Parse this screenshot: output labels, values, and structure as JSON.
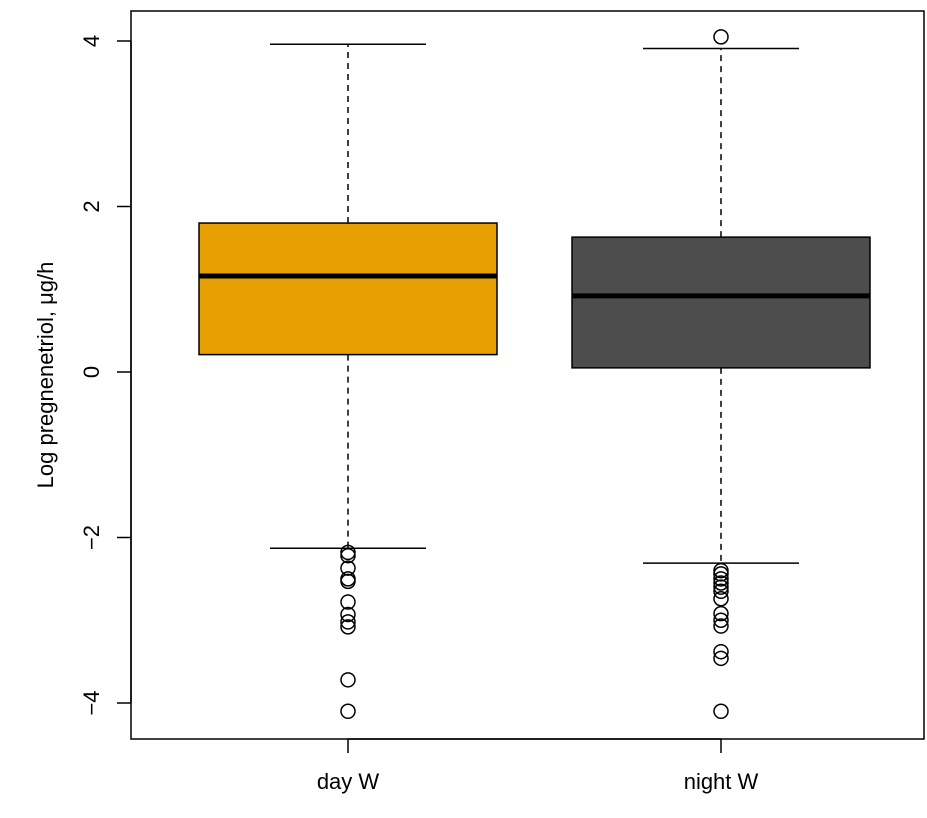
{
  "chart_data": {
    "type": "boxplot",
    "title": "",
    "xlabel": "",
    "ylabel": "Log pregnenetriol, μg/h",
    "ylim": [
      -4.4,
      4.4
    ],
    "yticks": [
      -4,
      -2,
      0,
      2,
      4
    ],
    "ytick_labels": [
      "−4",
      "−2",
      "0",
      "2",
      "4"
    ],
    "grid": false,
    "categories": [
      "day W",
      "night W"
    ],
    "boxes": [
      {
        "name": "day W",
        "color": "#E69F00",
        "whisker_low": -2.13,
        "q1": 0.21,
        "median": 1.16,
        "q3": 1.8,
        "whisker_high": 3.96,
        "outliers": [
          -2.18,
          -2.22,
          -2.37,
          -2.5,
          -2.53,
          -2.78,
          -2.93,
          -3.02,
          -3.08,
          -3.72,
          -4.1
        ]
      },
      {
        "name": "night W",
        "color": "#4D4D4D",
        "whisker_low": -2.31,
        "q1": 0.05,
        "median": 0.92,
        "q3": 1.63,
        "whisker_high": 3.91,
        "outliers": [
          4.05,
          -2.4,
          -2.44,
          -2.5,
          -2.55,
          -2.6,
          -2.65,
          -2.74,
          -2.92,
          -3.0,
          -3.07,
          -3.38,
          -3.46,
          -4.1
        ]
      }
    ]
  }
}
